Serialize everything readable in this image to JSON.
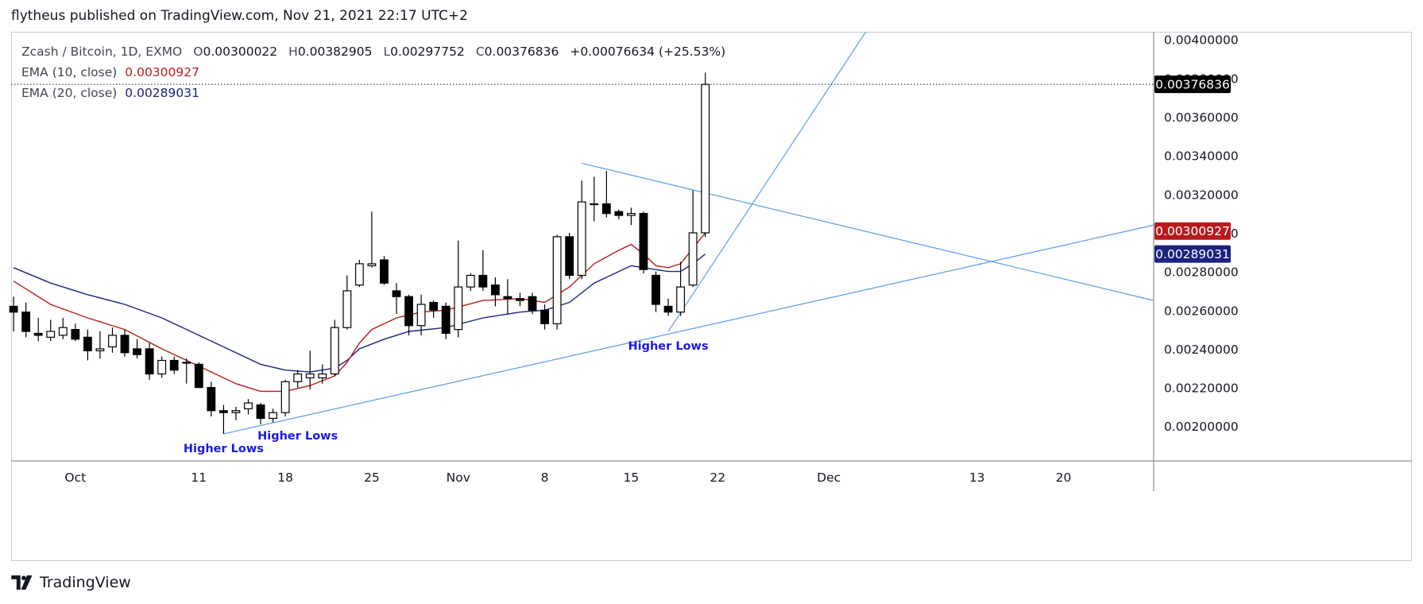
{
  "header": {
    "publish_line": "flytheus published on TradingView.com, Nov 21, 2021 22:17 UTC+2"
  },
  "legend": {
    "symbol": "Zcash / Bitcoin, 1D, EXMO",
    "ohlc": [
      {
        "key": "O",
        "value": "0.00300022"
      },
      {
        "key": "H",
        "value": "0.00382905"
      },
      {
        "key": "L",
        "value": "0.00297752"
      },
      {
        "key": "C",
        "value": "0.00376836"
      }
    ],
    "change": "+0.00076634 (+25.53%)",
    "ema10": {
      "label": "EMA (10, close)",
      "value": "0.00300927"
    },
    "ema20": {
      "label": "EMA (20, close)",
      "value": "0.00289031"
    }
  },
  "footer": {
    "brand": "TradingView"
  },
  "colors": {
    "up": "#ffffff",
    "down": "#000000",
    "ema10": "#b71c1c",
    "ema20": "#1a237e",
    "trendline": "#5b9ee8",
    "annotation": "#1a1adf",
    "last_price_bg": "#000000"
  },
  "chart_data": {
    "type": "candlestick",
    "ylim": [
      0.00182,
      0.00404
    ],
    "price_scale_labels": [
      "0.00400000",
      "0.00380000",
      "0.00360000",
      "0.00340000",
      "0.00320000",
      "0.00300000",
      "0.00280000",
      "0.00260000",
      "0.00240000",
      "0.00220000",
      "0.00200000"
    ],
    "price_scale_values": [
      0.004,
      0.0038,
      0.0036,
      0.0034,
      0.0032,
      0.003,
      0.0028,
      0.0026,
      0.0024,
      0.0022,
      0.002
    ],
    "x_ticks": [
      {
        "label": "Oct",
        "day": 0
      },
      {
        "label": "11",
        "day": 10
      },
      {
        "label": "18",
        "day": 17
      },
      {
        "label": "25",
        "day": 24
      },
      {
        "label": "Nov",
        "day": 31
      },
      {
        "label": "8",
        "day": 38
      },
      {
        "label": "15",
        "day": 45
      },
      {
        "label": "22",
        "day": 52
      },
      {
        "label": "Dec",
        "day": 61
      },
      {
        "label": "13",
        "day": 73
      },
      {
        "label": "20",
        "day": 80
      }
    ],
    "x_range_days": [
      -5.2,
      87.3
    ],
    "candles": [
      {
        "day": -5,
        "o": 0.00262,
        "h": 0.00267,
        "l": 0.00249,
        "c": 0.00259
      },
      {
        "day": -4,
        "o": 0.00259,
        "h": 0.00264,
        "l": 0.00246,
        "c": 0.00249
      },
      {
        "day": -3,
        "o": 0.00248,
        "h": 0.00256,
        "l": 0.00244,
        "c": 0.00247
      },
      {
        "day": -2,
        "o": 0.00246,
        "h": 0.00255,
        "l": 0.00244,
        "c": 0.00249
      },
      {
        "day": -1,
        "o": 0.00247,
        "h": 0.00256,
        "l": 0.00245,
        "c": 0.00251
      },
      {
        "day": 0,
        "o": 0.0025,
        "h": 0.00253,
        "l": 0.00244,
        "c": 0.00245
      },
      {
        "day": 1,
        "o": 0.00246,
        "h": 0.0025,
        "l": 0.00234,
        "c": 0.00239
      },
      {
        "day": 2,
        "o": 0.00239,
        "h": 0.00249,
        "l": 0.00235,
        "c": 0.0024
      },
      {
        "day": 3,
        "o": 0.00241,
        "h": 0.00251,
        "l": 0.00238,
        "c": 0.00247
      },
      {
        "day": 4,
        "o": 0.00247,
        "h": 0.0025,
        "l": 0.00236,
        "c": 0.00238
      },
      {
        "day": 5,
        "o": 0.0024,
        "h": 0.00245,
        "l": 0.00235,
        "c": 0.00237
      },
      {
        "day": 6,
        "o": 0.0024,
        "h": 0.00243,
        "l": 0.00224,
        "c": 0.00227
      },
      {
        "day": 7,
        "o": 0.00227,
        "h": 0.00236,
        "l": 0.00225,
        "c": 0.00234
      },
      {
        "day": 8,
        "o": 0.00234,
        "h": 0.00236,
        "l": 0.00227,
        "c": 0.00229
      },
      {
        "day": 9,
        "o": 0.00233,
        "h": 0.00235,
        "l": 0.00222,
        "c": 0.00233
      },
      {
        "day": 10,
        "o": 0.00232,
        "h": 0.00233,
        "l": 0.0022,
        "c": 0.0022
      },
      {
        "day": 11,
        "o": 0.0022,
        "h": 0.00223,
        "l": 0.00205,
        "c": 0.00208
      },
      {
        "day": 12,
        "o": 0.00208,
        "h": 0.00211,
        "l": 0.00196,
        "c": 0.00207
      },
      {
        "day": 13,
        "o": 0.00207,
        "h": 0.0021,
        "l": 0.00203,
        "c": 0.00208
      },
      {
        "day": 14,
        "o": 0.00209,
        "h": 0.00214,
        "l": 0.00206,
        "c": 0.00212
      },
      {
        "day": 15,
        "o": 0.00211,
        "h": 0.00212,
        "l": 0.00201,
        "c": 0.00204
      },
      {
        "day": 16,
        "o": 0.00204,
        "h": 0.00209,
        "l": 0.00202,
        "c": 0.00207
      },
      {
        "day": 17,
        "o": 0.00207,
        "h": 0.00224,
        "l": 0.00205,
        "c": 0.00223
      },
      {
        "day": 18,
        "o": 0.00223,
        "h": 0.00229,
        "l": 0.0022,
        "c": 0.00227
      },
      {
        "day": 19,
        "o": 0.00225,
        "h": 0.00239,
        "l": 0.00219,
        "c": 0.00227
      },
      {
        "day": 20,
        "o": 0.00225,
        "h": 0.00232,
        "l": 0.00222,
        "c": 0.00227
      },
      {
        "day": 21,
        "o": 0.00227,
        "h": 0.00255,
        "l": 0.00226,
        "c": 0.00251
      },
      {
        "day": 22,
        "o": 0.00251,
        "h": 0.00278,
        "l": 0.0025,
        "c": 0.0027
      },
      {
        "day": 23,
        "o": 0.00273,
        "h": 0.00286,
        "l": 0.00272,
        "c": 0.00284
      },
      {
        "day": 24,
        "o": 0.00283,
        "h": 0.00311,
        "l": 0.00282,
        "c": 0.00284
      },
      {
        "day": 25,
        "o": 0.00286,
        "h": 0.00288,
        "l": 0.00273,
        "c": 0.00274
      },
      {
        "day": 26,
        "o": 0.0027,
        "h": 0.00274,
        "l": 0.00258,
        "c": 0.00267
      },
      {
        "day": 27,
        "o": 0.00267,
        "h": 0.00268,
        "l": 0.00247,
        "c": 0.00252
      },
      {
        "day": 28,
        "o": 0.00252,
        "h": 0.00268,
        "l": 0.00247,
        "c": 0.00263
      },
      {
        "day": 29,
        "o": 0.00264,
        "h": 0.00265,
        "l": 0.00256,
        "c": 0.0026
      },
      {
        "day": 30,
        "o": 0.00262,
        "h": 0.00264,
        "l": 0.00245,
        "c": 0.00248
      },
      {
        "day": 31,
        "o": 0.0025,
        "h": 0.00296,
        "l": 0.00246,
        "c": 0.00272
      },
      {
        "day": 32,
        "o": 0.00272,
        "h": 0.00279,
        "l": 0.0027,
        "c": 0.00278
      },
      {
        "day": 33,
        "o": 0.00278,
        "h": 0.00291,
        "l": 0.0027,
        "c": 0.00272
      },
      {
        "day": 34,
        "o": 0.00273,
        "h": 0.00277,
        "l": 0.00262,
        "c": 0.00268
      },
      {
        "day": 35,
        "o": 0.00267,
        "h": 0.00276,
        "l": 0.00258,
        "c": 0.00266
      },
      {
        "day": 36,
        "o": 0.00266,
        "h": 0.00269,
        "l": 0.00262,
        "c": 0.00265
      },
      {
        "day": 37,
        "o": 0.00267,
        "h": 0.00269,
        "l": 0.00258,
        "c": 0.0026
      },
      {
        "day": 38,
        "o": 0.0026,
        "h": 0.00263,
        "l": 0.0025,
        "c": 0.00253
      },
      {
        "day": 39,
        "o": 0.00253,
        "h": 0.00299,
        "l": 0.0025,
        "c": 0.00298
      },
      {
        "day": 40,
        "o": 0.00298,
        "h": 0.003,
        "l": 0.00276,
        "c": 0.00278
      },
      {
        "day": 41,
        "o": 0.00278,
        "h": 0.00327,
        "l": 0.00276,
        "c": 0.00316
      },
      {
        "day": 42,
        "o": 0.00315,
        "h": 0.00329,
        "l": 0.00306,
        "c": 0.00315
      },
      {
        "day": 43,
        "o": 0.00315,
        "h": 0.00332,
        "l": 0.00308,
        "c": 0.0031
      },
      {
        "day": 44,
        "o": 0.00311,
        "h": 0.00312,
        "l": 0.00307,
        "c": 0.00309
      },
      {
        "day": 45,
        "o": 0.00309,
        "h": 0.00313,
        "l": 0.00304,
        "c": 0.0031
      },
      {
        "day": 46,
        "o": 0.0031,
        "h": 0.00311,
        "l": 0.00279,
        "c": 0.00281
      },
      {
        "day": 47,
        "o": 0.00278,
        "h": 0.0028,
        "l": 0.00259,
        "c": 0.00263
      },
      {
        "day": 48,
        "o": 0.00262,
        "h": 0.00266,
        "l": 0.00257,
        "c": 0.00259
      },
      {
        "day": 49,
        "o": 0.00259,
        "h": 0.00285,
        "l": 0.00257,
        "c": 0.00272
      },
      {
        "day": 50,
        "o": 0.00273,
        "h": 0.00322,
        "l": 0.00272,
        "c": 0.003
      },
      {
        "day": 51,
        "o": 0.003,
        "h": 0.003829,
        "l": 0.002978,
        "c": 0.003768
      }
    ],
    "ema10": [
      {
        "day": -5,
        "v": 0.00275
      },
      {
        "day": -2,
        "v": 0.00263
      },
      {
        "day": 1,
        "v": 0.00256
      },
      {
        "day": 4,
        "v": 0.0025
      },
      {
        "day": 7,
        "v": 0.0024
      },
      {
        "day": 10,
        "v": 0.00231
      },
      {
        "day": 13,
        "v": 0.00222
      },
      {
        "day": 15,
        "v": 0.00218
      },
      {
        "day": 17,
        "v": 0.00218
      },
      {
        "day": 19,
        "v": 0.00221
      },
      {
        "day": 21,
        "v": 0.00226
      },
      {
        "day": 22,
        "v": 0.00233
      },
      {
        "day": 23,
        "v": 0.00243
      },
      {
        "day": 24,
        "v": 0.0025
      },
      {
        "day": 26,
        "v": 0.00256
      },
      {
        "day": 28,
        "v": 0.00259
      },
      {
        "day": 30,
        "v": 0.0026
      },
      {
        "day": 33,
        "v": 0.00265
      },
      {
        "day": 36,
        "v": 0.00266
      },
      {
        "day": 38,
        "v": 0.00264
      },
      {
        "day": 40,
        "v": 0.00272
      },
      {
        "day": 42,
        "v": 0.00284
      },
      {
        "day": 44,
        "v": 0.00291
      },
      {
        "day": 45,
        "v": 0.00294
      },
      {
        "day": 46,
        "v": 0.00289
      },
      {
        "day": 47,
        "v": 0.00283
      },
      {
        "day": 48,
        "v": 0.00282
      },
      {
        "day": 49,
        "v": 0.00284
      },
      {
        "day": 50,
        "v": 0.00292
      },
      {
        "day": 51,
        "v": 0.003
      }
    ],
    "ema20": [
      {
        "day": -5,
        "v": 0.00282
      },
      {
        "day": -2,
        "v": 0.00274
      },
      {
        "day": 1,
        "v": 0.00268
      },
      {
        "day": 4,
        "v": 0.00263
      },
      {
        "day": 7,
        "v": 0.00256
      },
      {
        "day": 10,
        "v": 0.00247
      },
      {
        "day": 13,
        "v": 0.00238
      },
      {
        "day": 15,
        "v": 0.00232
      },
      {
        "day": 17,
        "v": 0.00229
      },
      {
        "day": 19,
        "v": 0.00228
      },
      {
        "day": 21,
        "v": 0.0023
      },
      {
        "day": 22,
        "v": 0.00234
      },
      {
        "day": 23,
        "v": 0.0024
      },
      {
        "day": 25,
        "v": 0.00245
      },
      {
        "day": 27,
        "v": 0.00249
      },
      {
        "day": 30,
        "v": 0.00251
      },
      {
        "day": 33,
        "v": 0.00256
      },
      {
        "day": 36,
        "v": 0.00259
      },
      {
        "day": 38,
        "v": 0.0026
      },
      {
        "day": 40,
        "v": 0.00264
      },
      {
        "day": 42,
        "v": 0.00274
      },
      {
        "day": 44,
        "v": 0.0028
      },
      {
        "day": 45,
        "v": 0.00283
      },
      {
        "day": 46,
        "v": 0.00282
      },
      {
        "day": 48,
        "v": 0.0028
      },
      {
        "day": 49,
        "v": 0.0028
      },
      {
        "day": 50,
        "v": 0.00284
      },
      {
        "day": 51,
        "v": 0.00289
      }
    ],
    "trendlines": [
      {
        "name": "rising-support",
        "points": [
          {
            "day": 12,
            "v": 0.00196
          },
          {
            "day": 87.3,
            "v": 0.00304
          }
        ]
      },
      {
        "name": "falling-resistance",
        "points": [
          {
            "day": 41,
            "v": 0.00336
          },
          {
            "day": 87.3,
            "v": 0.00265
          }
        ]
      },
      {
        "name": "steep-support",
        "points": [
          {
            "day": 48,
            "v": 0.00249
          },
          {
            "day": 64,
            "v": 0.00404
          }
        ]
      }
    ],
    "annotations": [
      {
        "text": "Higher Lows",
        "day": 12,
        "v": 0.001865
      },
      {
        "text": "Higher Lows",
        "day": 18,
        "v": 0.00193
      },
      {
        "text": "Higher Lows",
        "day": 48,
        "v": 0.002395
      }
    ],
    "last_price": {
      "value": 0.00376836,
      "label": "0.00376836"
    },
    "ema10_price": {
      "value": 0.00300927,
      "label": "0.00300927"
    },
    "ema20_price": {
      "value": 0.00289031,
      "label": "0.00289031"
    }
  }
}
